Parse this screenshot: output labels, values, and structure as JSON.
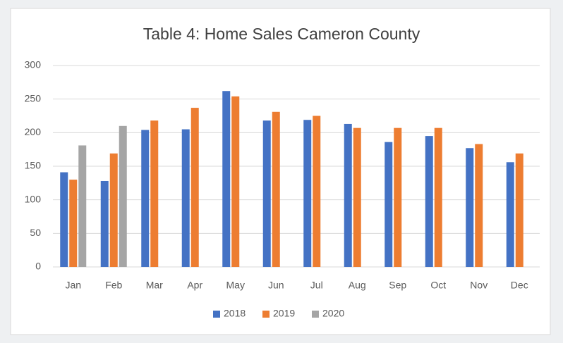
{
  "chart_data": {
    "type": "bar",
    "title": "Table 4: Home Sales Cameron County",
    "categories": [
      "Jan",
      "Feb",
      "Mar",
      "Apr",
      "May",
      "Jun",
      "Jul",
      "Aug",
      "Sep",
      "Oct",
      "Nov",
      "Dec"
    ],
    "series": [
      {
        "name": "2018",
        "color": "#4472c4",
        "values": [
          141,
          128,
          204,
          205,
          262,
          218,
          219,
          213,
          186,
          195,
          177,
          156
        ]
      },
      {
        "name": "2019",
        "color": "#ed7d31",
        "values": [
          130,
          169,
          218,
          237,
          254,
          231,
          225,
          207,
          207,
          207,
          183,
          169
        ]
      },
      {
        "name": "2020",
        "color": "#a5a5a5",
        "values": [
          181,
          210,
          null,
          null,
          null,
          null,
          null,
          null,
          null,
          null,
          null,
          null
        ]
      }
    ],
    "ylim": [
      0,
      300
    ],
    "yticks": [
      0,
      50,
      100,
      150,
      200,
      250,
      300
    ],
    "grid": true,
    "legend": "bottom"
  }
}
